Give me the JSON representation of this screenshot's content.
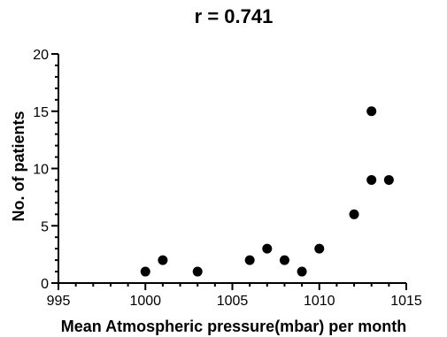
{
  "chart_data": {
    "type": "scatter",
    "title": "r = 0.741",
    "xlabel": "Mean Atmospheric pressure(mbar) per month",
    "ylabel": "No. of patients",
    "xlim": [
      995,
      1015
    ],
    "ylim": [
      0,
      20
    ],
    "x_ticks": [
      995,
      1000,
      1005,
      1010,
      1015
    ],
    "x_tick_labels": [
      "995",
      "1000",
      "1005",
      "1010",
      "1015"
    ],
    "y_ticks": [
      0,
      5,
      10,
      15,
      20
    ],
    "y_tick_labels": [
      "0",
      "5",
      "10",
      "15",
      "20"
    ],
    "grid": false,
    "legend": "none",
    "marker_color": "#000000",
    "points": [
      {
        "x": 1000,
        "y": 1
      },
      {
        "x": 1001,
        "y": 2
      },
      {
        "x": 1003,
        "y": 1
      },
      {
        "x": 1006,
        "y": 2
      },
      {
        "x": 1007,
        "y": 3
      },
      {
        "x": 1008,
        "y": 2
      },
      {
        "x": 1009,
        "y": 1
      },
      {
        "x": 1010,
        "y": 3
      },
      {
        "x": 1012,
        "y": 6
      },
      {
        "x": 1013,
        "y": 15
      },
      {
        "x": 1013,
        "y": 9
      },
      {
        "x": 1014,
        "y": 9
      }
    ]
  }
}
